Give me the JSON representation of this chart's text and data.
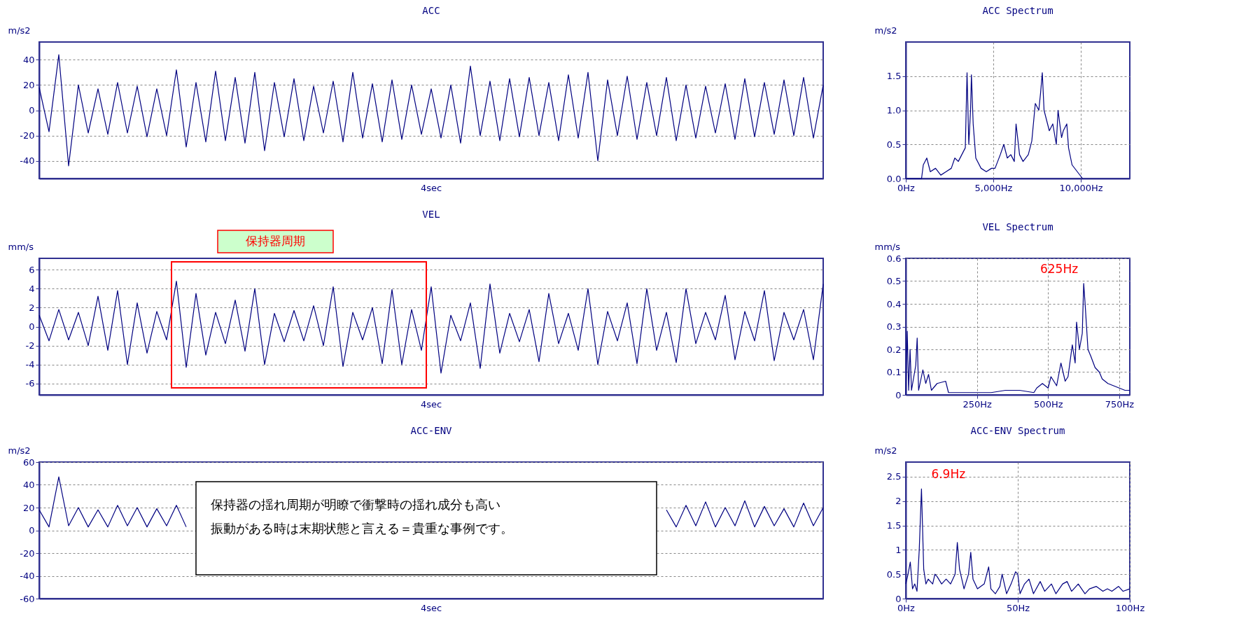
{
  "chart_data": [
    {
      "type": "line",
      "title": "ACC",
      "ylabel": "m/s2",
      "grid": "y",
      "ylim": [
        -54,
        54
      ],
      "yticks": [
        -40,
        -20,
        0,
        20,
        40
      ],
      "annotations": [
        "4sec"
      ],
      "categories": [
        null,
        null,
        null,
        null,
        null,
        null,
        null,
        null,
        null,
        null,
        null,
        null,
        null,
        null,
        null,
        null,
        null,
        null,
        null,
        null,
        null,
        null,
        null,
        null,
        null,
        null,
        null,
        null,
        null,
        null,
        null,
        null,
        null,
        null,
        null,
        null,
        null,
        null,
        null,
        null,
        null,
        null,
        null,
        null,
        null,
        null,
        null,
        null,
        null,
        null,
        null,
        null,
        null,
        null,
        null,
        null,
        null,
        null,
        null,
        null,
        null,
        null,
        null,
        null,
        null,
        null,
        null,
        null,
        null,
        null,
        null,
        null,
        null,
        null,
        null,
        null,
        null,
        null,
        null,
        null,
        null
      ],
      "series": [
        {
          "color": "#000080",
          "values": [
            18,
            -17,
            44,
            -44,
            20,
            -18,
            17,
            -19,
            22,
            -18,
            19,
            -21,
            17,
            -20,
            32,
            -29,
            22,
            -25,
            31,
            -24,
            26,
            -26,
            30,
            -32,
            22,
            -21,
            25,
            -24,
            19,
            -18,
            23,
            -25,
            30,
            -22,
            21,
            -25,
            24,
            -23,
            20,
            -19,
            17,
            -22,
            20,
            -26,
            35,
            -20,
            23,
            -24,
            25,
            -21,
            26,
            -20,
            22,
            -24,
            28,
            -22,
            30,
            -40,
            24,
            -20,
            27,
            -23,
            22,
            -20,
            26,
            -24,
            20,
            -22,
            19,
            -18,
            21,
            -23,
            25,
            -21,
            22,
            -19,
            24,
            -20,
            26,
            -22,
            20
          ]
        }
      ]
    },
    {
      "type": "line",
      "title": "ACC Spectrum",
      "ylabel": "m/s2",
      "grid": true,
      "xlim": [
        0,
        12800
      ],
      "xticks": [
        {
          "value": 0,
          "label": "0Hz"
        },
        {
          "value": 5000,
          "label": "5,000Hz"
        },
        {
          "value": 10000,
          "label": "10,000Hz"
        }
      ],
      "ylim": [
        0,
        2
      ],
      "yticks": [
        {
          "value": 0,
          "label": "0.0"
        },
        0.5,
        {
          "value": 1,
          "label": "1.0"
        },
        1.5
      ],
      "series": [
        {
          "color": "#000080",
          "x": [
            0,
            900,
            1000,
            1200,
            1400,
            1700,
            2000,
            2300,
            2600,
            2800,
            3000,
            3200,
            3400,
            3500,
            3600,
            3700,
            3750,
            3850,
            4000,
            4300,
            4600,
            4900,
            5100,
            5400,
            5600,
            5800,
            6000,
            6200,
            6300,
            6500,
            6700,
            7000,
            7200,
            7400,
            7600,
            7700,
            7800,
            7900,
            8200,
            8400,
            8600,
            8700,
            8900,
            9000,
            9200,
            9300,
            9500,
            9800,
            10100
          ],
          "values": [
            0,
            0,
            0.2,
            0.3,
            0.1,
            0.15,
            0.05,
            0.1,
            0.15,
            0.3,
            0.25,
            0.35,
            0.45,
            1.55,
            0.5,
            1.0,
            1.52,
            0.8,
            0.3,
            0.15,
            0.1,
            0.15,
            0.15,
            0.35,
            0.5,
            0.3,
            0.35,
            0.25,
            0.8,
            0.35,
            0.25,
            0.35,
            0.55,
            1.1,
            1.0,
            1.25,
            1.55,
            1.0,
            0.7,
            0.8,
            0.5,
            1.0,
            0.6,
            0.7,
            0.8,
            0.45,
            0.2,
            0.1,
            0
          ]
        }
      ]
    },
    {
      "type": "line",
      "title": "VEL",
      "ylabel": "mm/s",
      "grid": "y",
      "ylim": [
        -7.2,
        7.2
      ],
      "yticks": [
        -6,
        -4,
        -2,
        0,
        2,
        4,
        6
      ],
      "annotations": [
        "保持器周期",
        "4sec"
      ],
      "categories": [
        null,
        null,
        null,
        null,
        null,
        null,
        null,
        null,
        null,
        null,
        null,
        null,
        null,
        null,
        null,
        null,
        null,
        null,
        null,
        null,
        null,
        null,
        null,
        null,
        null,
        null,
        null,
        null,
        null,
        null,
        null,
        null,
        null,
        null,
        null,
        null,
        null,
        null,
        null,
        null,
        null,
        null,
        null,
        null,
        null,
        null,
        null,
        null,
        null,
        null,
        null,
        null,
        null,
        null,
        null,
        null,
        null,
        null,
        null,
        null,
        null,
        null,
        null,
        null,
        null,
        null,
        null,
        null,
        null,
        null,
        null,
        null,
        null,
        null,
        null,
        null,
        null,
        null,
        null,
        null,
        null
      ],
      "series": [
        {
          "color": "#000080",
          "values": [
            1.2,
            -1.5,
            1.8,
            -1.4,
            1.5,
            -2.0,
            3.2,
            -2.5,
            3.8,
            -4.0,
            2.5,
            -2.8,
            1.6,
            -1.4,
            4.8,
            -4.3,
            3.5,
            -3.0,
            1.5,
            -1.8,
            2.8,
            -2.6,
            4.0,
            -4.0,
            1.4,
            -1.6,
            1.7,
            -1.5,
            2.2,
            -2.0,
            4.2,
            -4.2,
            1.5,
            -1.4,
            2.0,
            -3.9,
            3.9,
            -4.0,
            1.8,
            -2.5,
            4.2,
            -4.9,
            1.2,
            -1.5,
            2.5,
            -4.4,
            4.5,
            -2.8,
            1.4,
            -1.6,
            1.8,
            -3.7,
            3.5,
            -1.8,
            1.4,
            -2.5,
            4.0,
            -4.0,
            1.6,
            -1.5,
            2.5,
            -3.9,
            4.0,
            -2.5,
            1.5,
            -3.8,
            4.0,
            -1.8,
            1.5,
            -1.4,
            3.3,
            -3.5,
            1.6,
            -1.5,
            3.8,
            -3.6,
            1.5,
            -1.4,
            1.8,
            -3.5,
            4.5
          ]
        }
      ]
    },
    {
      "type": "line",
      "title": "VEL Spectrum",
      "ylabel": "mm/s",
      "grid": true,
      "xlim": [
        0,
        787
      ],
      "xticks": [
        {
          "value": 250,
          "label": "250Hz"
        },
        {
          "value": 500,
          "label": "500Hz"
        },
        {
          "value": 750,
          "label": "750Hz"
        }
      ],
      "ylim": [
        0,
        0.6
      ],
      "yticks": [
        0,
        0.1,
        0.2,
        0.3,
        0.4,
        0.5,
        0.6
      ],
      "annotations": [
        {
          "text": "625Hz",
          "x": 625,
          "y": 0.49
        }
      ],
      "series": [
        {
          "color": "#000080",
          "x": [
            0,
            5,
            10,
            15,
            20,
            35,
            40,
            45,
            60,
            70,
            80,
            90,
            110,
            140,
            150,
            200,
            250,
            300,
            350,
            400,
            450,
            460,
            480,
            500,
            510,
            530,
            545,
            560,
            570,
            585,
            595,
            600,
            610,
            620,
            625,
            630,
            640,
            650,
            665,
            680,
            690,
            710,
            730,
            750,
            770,
            787
          ],
          "values": [
            0,
            0.28,
            0.02,
            0.2,
            0.02,
            0.13,
            0.25,
            0.02,
            0.11,
            0.05,
            0.09,
            0.02,
            0.05,
            0.06,
            0.01,
            0.01,
            0.01,
            0.01,
            0.02,
            0.02,
            0.01,
            0.03,
            0.05,
            0.03,
            0.08,
            0.04,
            0.14,
            0.06,
            0.08,
            0.22,
            0.14,
            0.32,
            0.2,
            0.27,
            0.49,
            0.4,
            0.2,
            0.17,
            0.12,
            0.1,
            0.07,
            0.05,
            0.04,
            0.03,
            0.02,
            0.02
          ]
        }
      ]
    },
    {
      "type": "line",
      "title": "ACC-ENV",
      "ylabel": "m/s2",
      "grid": "y",
      "ylim": [
        -60,
        60
      ],
      "yticks": [
        -60,
        -40,
        -20,
        0,
        20,
        40,
        60
      ],
      "annotations": [
        "保持器の揺れ周期が明瞭で衝撃時の揺れ成分も高い",
        "振動がある時は末期状態と言える＝貴重な事例です。",
        "4sec"
      ],
      "categories": [
        null,
        null,
        null,
        null,
        null,
        null,
        null,
        null,
        null,
        null,
        null,
        null,
        null,
        null,
        null,
        null,
        null,
        null,
        null,
        null,
        null,
        null,
        null,
        null,
        null,
        null,
        null,
        null,
        null,
        null,
        null,
        null,
        null,
        null,
        null,
        null,
        null,
        null,
        null,
        null,
        null,
        null,
        null,
        null,
        null,
        null,
        null,
        null,
        null,
        null,
        null,
        null,
        null,
        null,
        null,
        null,
        null,
        null,
        null,
        null,
        null,
        null,
        null,
        null,
        null,
        null,
        null,
        null,
        null,
        null,
        null,
        null,
        null,
        null,
        null,
        null,
        null,
        null,
        null,
        null,
        null
      ],
      "series": [
        {
          "color": "#000080",
          "values": [
            18,
            3,
            47,
            4,
            20,
            3,
            18,
            3,
            22,
            4,
            20,
            3,
            19,
            4,
            22,
            3,
            null,
            null,
            null,
            null,
            null,
            null,
            null,
            null,
            null,
            null,
            null,
            null,
            null,
            null,
            null,
            null,
            null,
            null,
            null,
            null,
            null,
            null,
            null,
            null,
            null,
            null,
            null,
            null,
            null,
            null,
            null,
            null,
            null,
            null,
            null,
            null,
            null,
            null,
            null,
            null,
            null,
            null,
            null,
            null,
            null,
            null,
            null,
            null,
            18,
            3,
            22,
            4,
            25,
            3,
            20,
            4,
            26,
            3,
            21,
            4,
            19,
            3,
            24,
            4,
            20
          ]
        }
      ]
    },
    {
      "type": "line",
      "title": "ACC-ENV Spectrum",
      "ylabel": "m/s2",
      "grid": true,
      "xlim": [
        0,
        100
      ],
      "xticks": [
        {
          "value": 0,
          "label": "0Hz"
        },
        {
          "value": 50,
          "label": "50Hz"
        },
        {
          "value": 100,
          "label": "100Hz"
        }
      ],
      "ylim": [
        0,
        2.8
      ],
      "yticks": [
        0,
        0.5,
        1,
        1.5,
        2,
        2.5
      ],
      "annotations": [
        {
          "text": "6.9Hz",
          "x": 7,
          "y": 2.25
        }
      ],
      "series": [
        {
          "color": "#000080",
          "x": [
            0,
            1,
            2,
            3,
            4,
            5,
            6,
            7,
            8,
            9,
            10,
            12,
            13,
            14,
            16,
            18,
            20,
            22,
            23,
            24,
            26,
            28,
            29,
            30,
            32,
            35,
            37,
            38,
            40,
            42,
            43,
            45,
            47,
            49,
            50,
            51,
            53,
            55,
            57,
            60,
            62,
            65,
            67,
            70,
            72,
            74,
            77,
            80,
            82,
            85,
            88,
            90,
            92,
            95,
            97,
            100
          ],
          "values": [
            0.3,
            0.5,
            0.75,
            0.2,
            0.3,
            0.15,
            1.0,
            2.25,
            0.6,
            0.3,
            0.4,
            0.3,
            0.5,
            0.45,
            0.3,
            0.4,
            0.3,
            0.5,
            1.15,
            0.6,
            0.2,
            0.5,
            0.95,
            0.4,
            0.2,
            0.3,
            0.65,
            0.2,
            0.1,
            0.25,
            0.5,
            0.1,
            0.3,
            0.55,
            0.5,
            0.1,
            0.3,
            0.4,
            0.1,
            0.35,
            0.15,
            0.3,
            0.1,
            0.3,
            0.35,
            0.15,
            0.3,
            0.1,
            0.2,
            0.25,
            0.15,
            0.2,
            0.15,
            0.25,
            0.15,
            0.2
          ]
        }
      ]
    }
  ]
}
